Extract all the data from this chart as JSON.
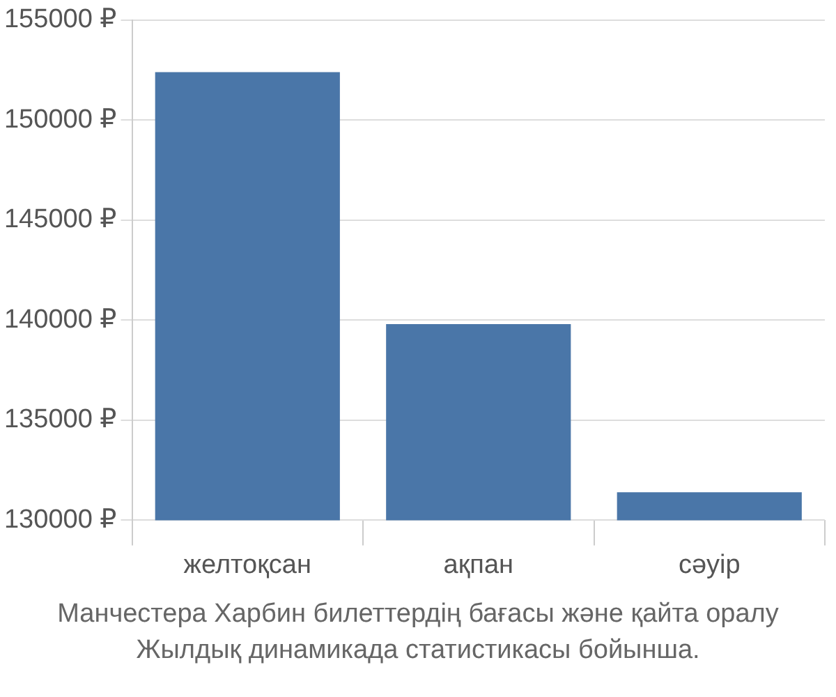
{
  "chart_data": {
    "type": "bar",
    "categories": [
      "желтоқсан",
      "ақпан",
      "сәуір"
    ],
    "values": [
      152400,
      139800,
      131400
    ],
    "color": "#4a76a8",
    "ylim": [
      130000,
      155000
    ],
    "yticks": [
      {
        "value": 130000,
        "label": "130000 ₽"
      },
      {
        "value": 135000,
        "label": "135000 ₽"
      },
      {
        "value": 140000,
        "label": "140000 ₽"
      },
      {
        "value": 145000,
        "label": "145000 ₽"
      },
      {
        "value": 150000,
        "label": "150000 ₽"
      },
      {
        "value": 155000,
        "label": "155000 ₽"
      }
    ],
    "grid": "y",
    "legend": false,
    "annotations": [
      "Манчестера Харбин билеттердің бағасы және қайта оралу",
      "Жылдық динамикада статистикасы бойынша."
    ]
  }
}
